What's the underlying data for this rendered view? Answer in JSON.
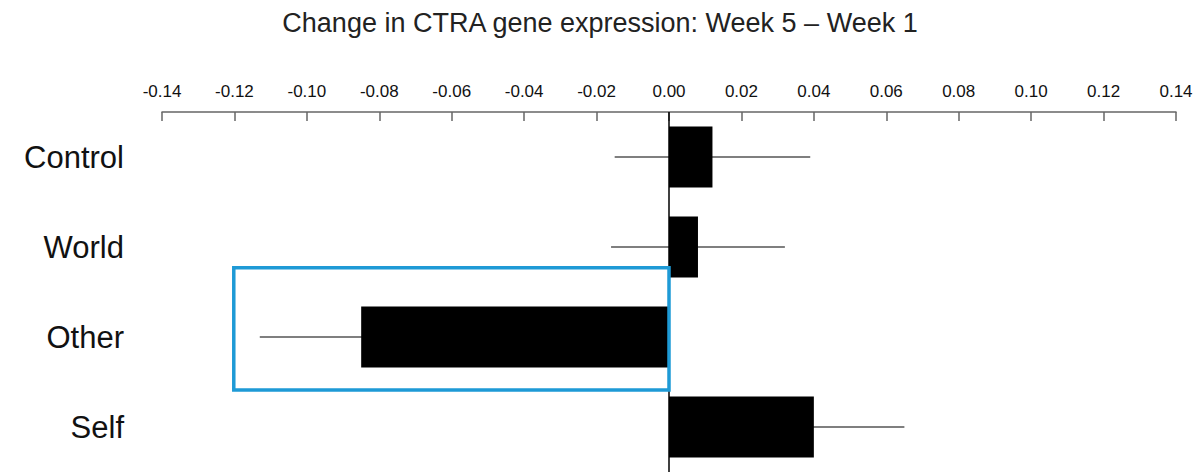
{
  "chart_data": {
    "type": "bar",
    "orientation": "horizontal",
    "title": "Change in CTRA gene expression: Week 5 – Week 1",
    "categories": [
      "Control",
      "World",
      "Other",
      "Self"
    ],
    "values": [
      0.012,
      0.008,
      -0.085,
      0.04
    ],
    "errors": [
      0.027,
      0.024,
      0.028,
      0.025
    ],
    "color": "#000000",
    "xlim": [
      -0.14,
      0.14
    ],
    "xticks": [
      -0.14,
      -0.12,
      {
        "value": -0.1,
        "label": "-0.10"
      },
      -0.08,
      -0.06,
      -0.04,
      -0.02,
      {
        "value": 0,
        "label": "0.00"
      },
      0.02,
      0.04,
      0.06,
      0.08,
      {
        "value": 0.1,
        "label": "0.10"
      },
      0.12,
      0.14
    ],
    "grid": false
  }
}
